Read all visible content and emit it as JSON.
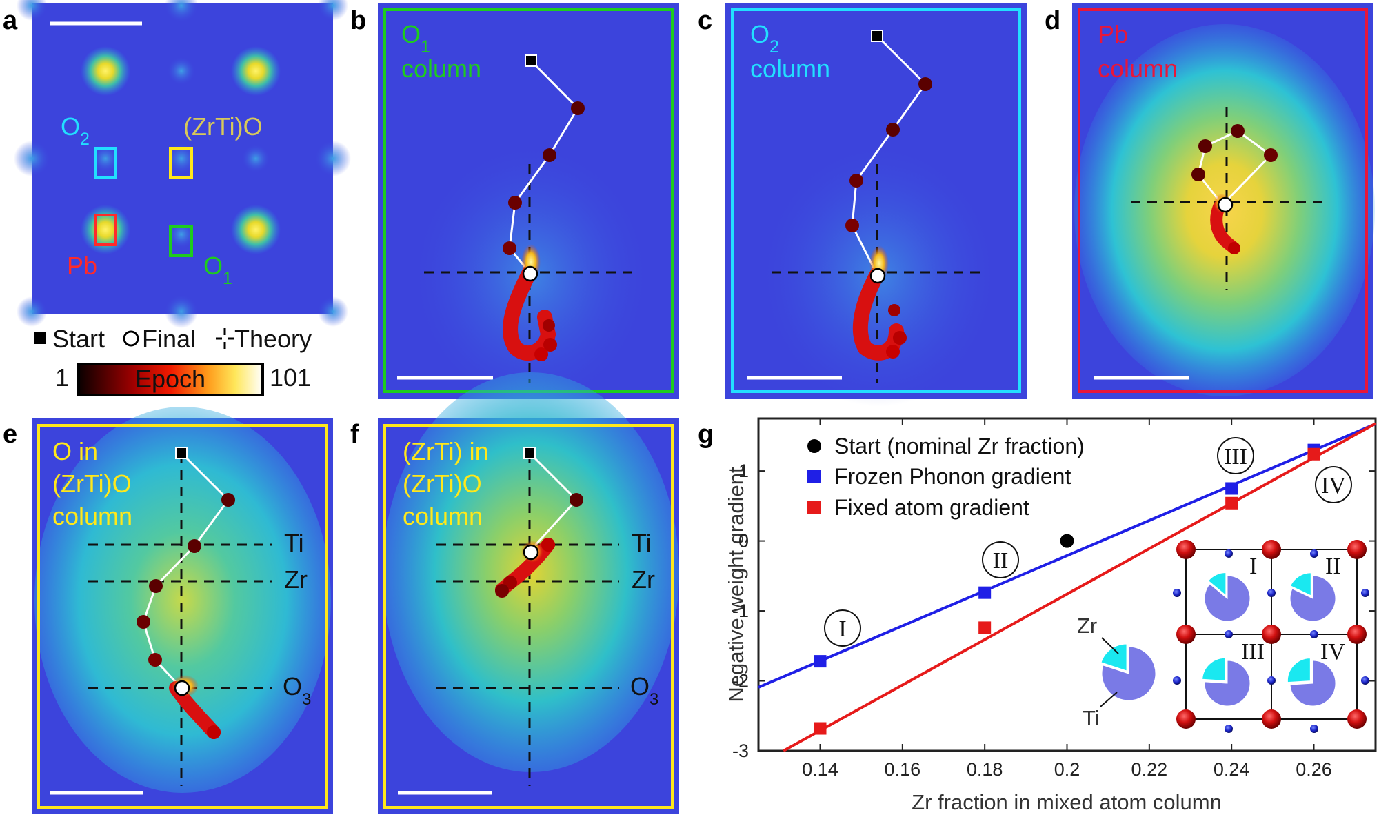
{
  "panel_letters": [
    "a",
    "b",
    "c",
    "d",
    "e",
    "f",
    "g"
  ],
  "panel_a": {
    "labels": {
      "o2": "O",
      "o2_sub": "2",
      "zrtio": "(ZrTi)O",
      "pb": "Pb",
      "o1": "O",
      "o1_sub": "1"
    },
    "legend": {
      "start": "Start",
      "final": "Final",
      "theory": "Theory"
    },
    "colorbar": {
      "title": "Epoch",
      "min": "1",
      "max": "101"
    }
  },
  "panel_b": {
    "title_l1": "O",
    "title_sub": "1",
    "title_l2": "column"
  },
  "panel_c": {
    "title_l1": "O",
    "title_sub": "2",
    "title_l2": "column"
  },
  "panel_d": {
    "title_l1": "Pb",
    "title_l2": "column"
  },
  "panel_e": {
    "title_l1": "O in",
    "title_l2": "(ZrTi)O",
    "title_l3": "column",
    "lines": {
      "ti": "Ti",
      "zr": "Zr",
      "o3": "O",
      "o3_sub": "3"
    }
  },
  "panel_f": {
    "title_l1": "(ZrTi) in",
    "title_l2": "(ZrTi)O",
    "title_l3": "column",
    "lines": {
      "ti": "Ti",
      "zr": "Zr",
      "o3": "O",
      "o3_sub": "3"
    }
  },
  "colors": {
    "blue": "#1f1fe6",
    "red": "#e61a1a",
    "green": "#1ecc1e",
    "cyan": "#22dfff",
    "yellow": "#ffe81a",
    "pbred": "#e8163a"
  },
  "chart_data": {
    "type": "scatter",
    "xlabel": "Zr fraction in mixed atom column",
    "ylabel": "Negative weight gradient",
    "xlim": [
      0.125,
      0.275
    ],
    "ylim": [
      -3,
      1.75
    ],
    "xticks": [
      "0.14",
      "0.16",
      "0.18",
      "0.2",
      "0.22",
      "0.24",
      "0.26"
    ],
    "yticks": [
      "1",
      "0",
      "-1",
      "-2",
      "-3"
    ],
    "legend": {
      "start": "Start (nominal Zr fraction)",
      "frozen": "Frozen Phonon gradient",
      "fixed": "Fixed atom gradient"
    },
    "start_point": {
      "x": 0.2,
      "y": 0.0
    },
    "series": [
      {
        "name": "Frozen Phonon gradient",
        "color": "#1f1fe6",
        "x": [
          0.14,
          0.18,
          0.24,
          0.26
        ],
        "y": [
          -1.72,
          -0.74,
          0.75,
          1.3
        ],
        "fit": {
          "slope": 25.1,
          "intercept": -5.23
        }
      },
      {
        "name": "Fixed atom gradient",
        "color": "#e61a1a",
        "x": [
          0.14,
          0.18,
          0.24,
          0.26
        ],
        "y": [
          -2.68,
          -1.24,
          0.54,
          1.24
        ],
        "fit": {
          "slope": 32.5,
          "intercept": -7.26
        }
      }
    ],
    "annotations": [
      "I",
      "II",
      "III",
      "IV"
    ],
    "inset": {
      "zr_label": "Zr",
      "ti_label": "Ti",
      "cells": [
        "I",
        "II",
        "III",
        "IV"
      ],
      "zr_fraction_cells": [
        0.14,
        0.18,
        0.24,
        0.26
      ],
      "zr_fraction_key": 0.2
    }
  }
}
